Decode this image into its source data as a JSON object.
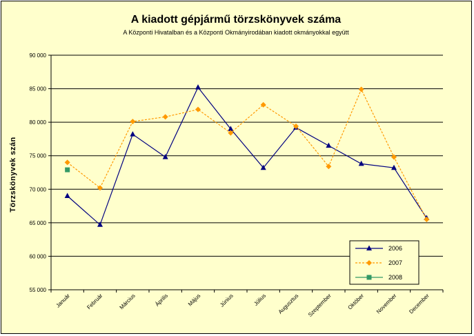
{
  "chart_data": {
    "type": "line",
    "title": "A  kiadott gépjármű  törzskönyvek száma",
    "subtitle": "A Központi Hivatalban és a Központi Okmányirodában kiadott okmányokkal együtt",
    "xlabel": "",
    "ylabel": "Törzskönyvek szán",
    "ylim": [
      55000,
      90000
    ],
    "ytick_step": 5000,
    "ytick_labels": [
      "55 000",
      "60 000",
      "65 000",
      "70 000",
      "75 000",
      "80 000",
      "85 000",
      "90 000"
    ],
    "grid": true,
    "legend_position": "bottom-right",
    "categories": [
      "Január",
      "Február",
      "Március",
      "Április",
      "Május",
      "Június",
      "Július",
      "Augusztus",
      "Szeptember",
      "Október",
      "November",
      "December"
    ],
    "series": [
      {
        "name": "2006",
        "color": "#000080",
        "marker": "triangle",
        "dash": "solid",
        "values": [
          69000,
          64700,
          78200,
          74800,
          85200,
          79000,
          73200,
          79200,
          76500,
          73800,
          73200,
          65700
        ]
      },
      {
        "name": "2007",
        "color": "#FF9900",
        "marker": "diamond",
        "dash": "dashed",
        "values": [
          74000,
          70200,
          80100,
          80800,
          81900,
          78400,
          82600,
          79400,
          73400,
          84900,
          74800,
          65500
        ]
      },
      {
        "name": "2008",
        "color": "#339966",
        "marker": "square",
        "dash": "solid",
        "values": [
          72900,
          null,
          null,
          null,
          null,
          null,
          null,
          null,
          null,
          null,
          null,
          null
        ]
      }
    ]
  }
}
